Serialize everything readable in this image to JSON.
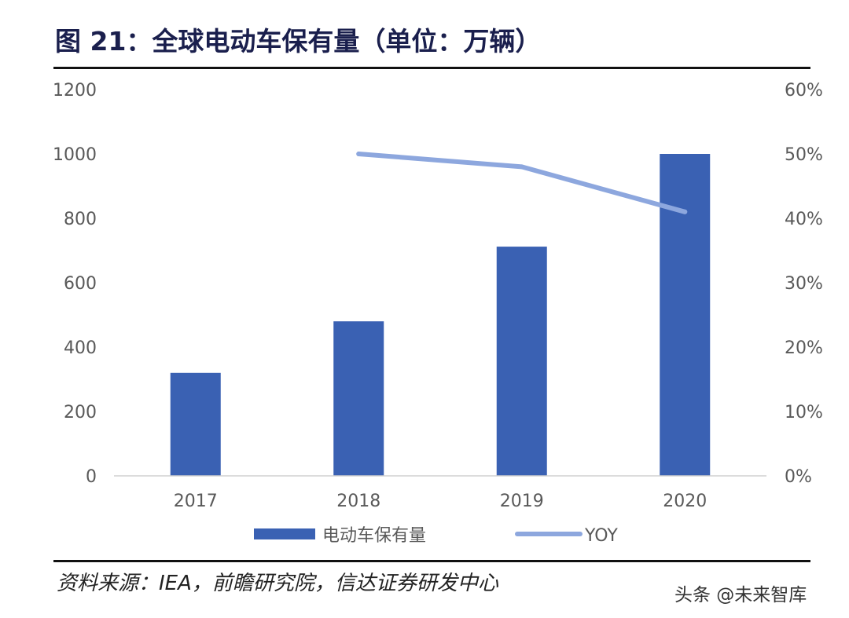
{
  "title": "图 21：全球电动车保有量（单位：万辆）",
  "source_note": "资料来源：IEA，前瞻研究院，信达证券研发中心",
  "watermark": "头条 @未来智库",
  "colors": {
    "bar": "#3a61b3",
    "line": "#8da7de",
    "title": "#1a1f4d"
  },
  "chart_data": {
    "type": "bar",
    "title": "图 21：全球电动车保有量（单位：万辆）",
    "categories": [
      "2017",
      "2018",
      "2019",
      "2020"
    ],
    "series": [
      {
        "name": "电动车保有量",
        "type": "bar",
        "axis": "left",
        "values": [
          320,
          480,
          712,
          1000
        ]
      },
      {
        "name": "YOY",
        "type": "line",
        "axis": "right",
        "values": [
          null,
          0.5,
          0.48,
          0.41
        ]
      }
    ],
    "y_left": {
      "min": 0,
      "max": 1200,
      "ticks": [
        "0",
        "200",
        "400",
        "600",
        "800",
        "1000",
        "1200"
      ]
    },
    "y_right": {
      "min": 0,
      "max": 0.6,
      "ticks": [
        "0%",
        "10%",
        "20%",
        "30%",
        "40%",
        "50%",
        "60%"
      ]
    },
    "legend": {
      "position": "bottom",
      "entries": [
        "电动车保有量",
        "YOY"
      ]
    },
    "grid": false
  }
}
